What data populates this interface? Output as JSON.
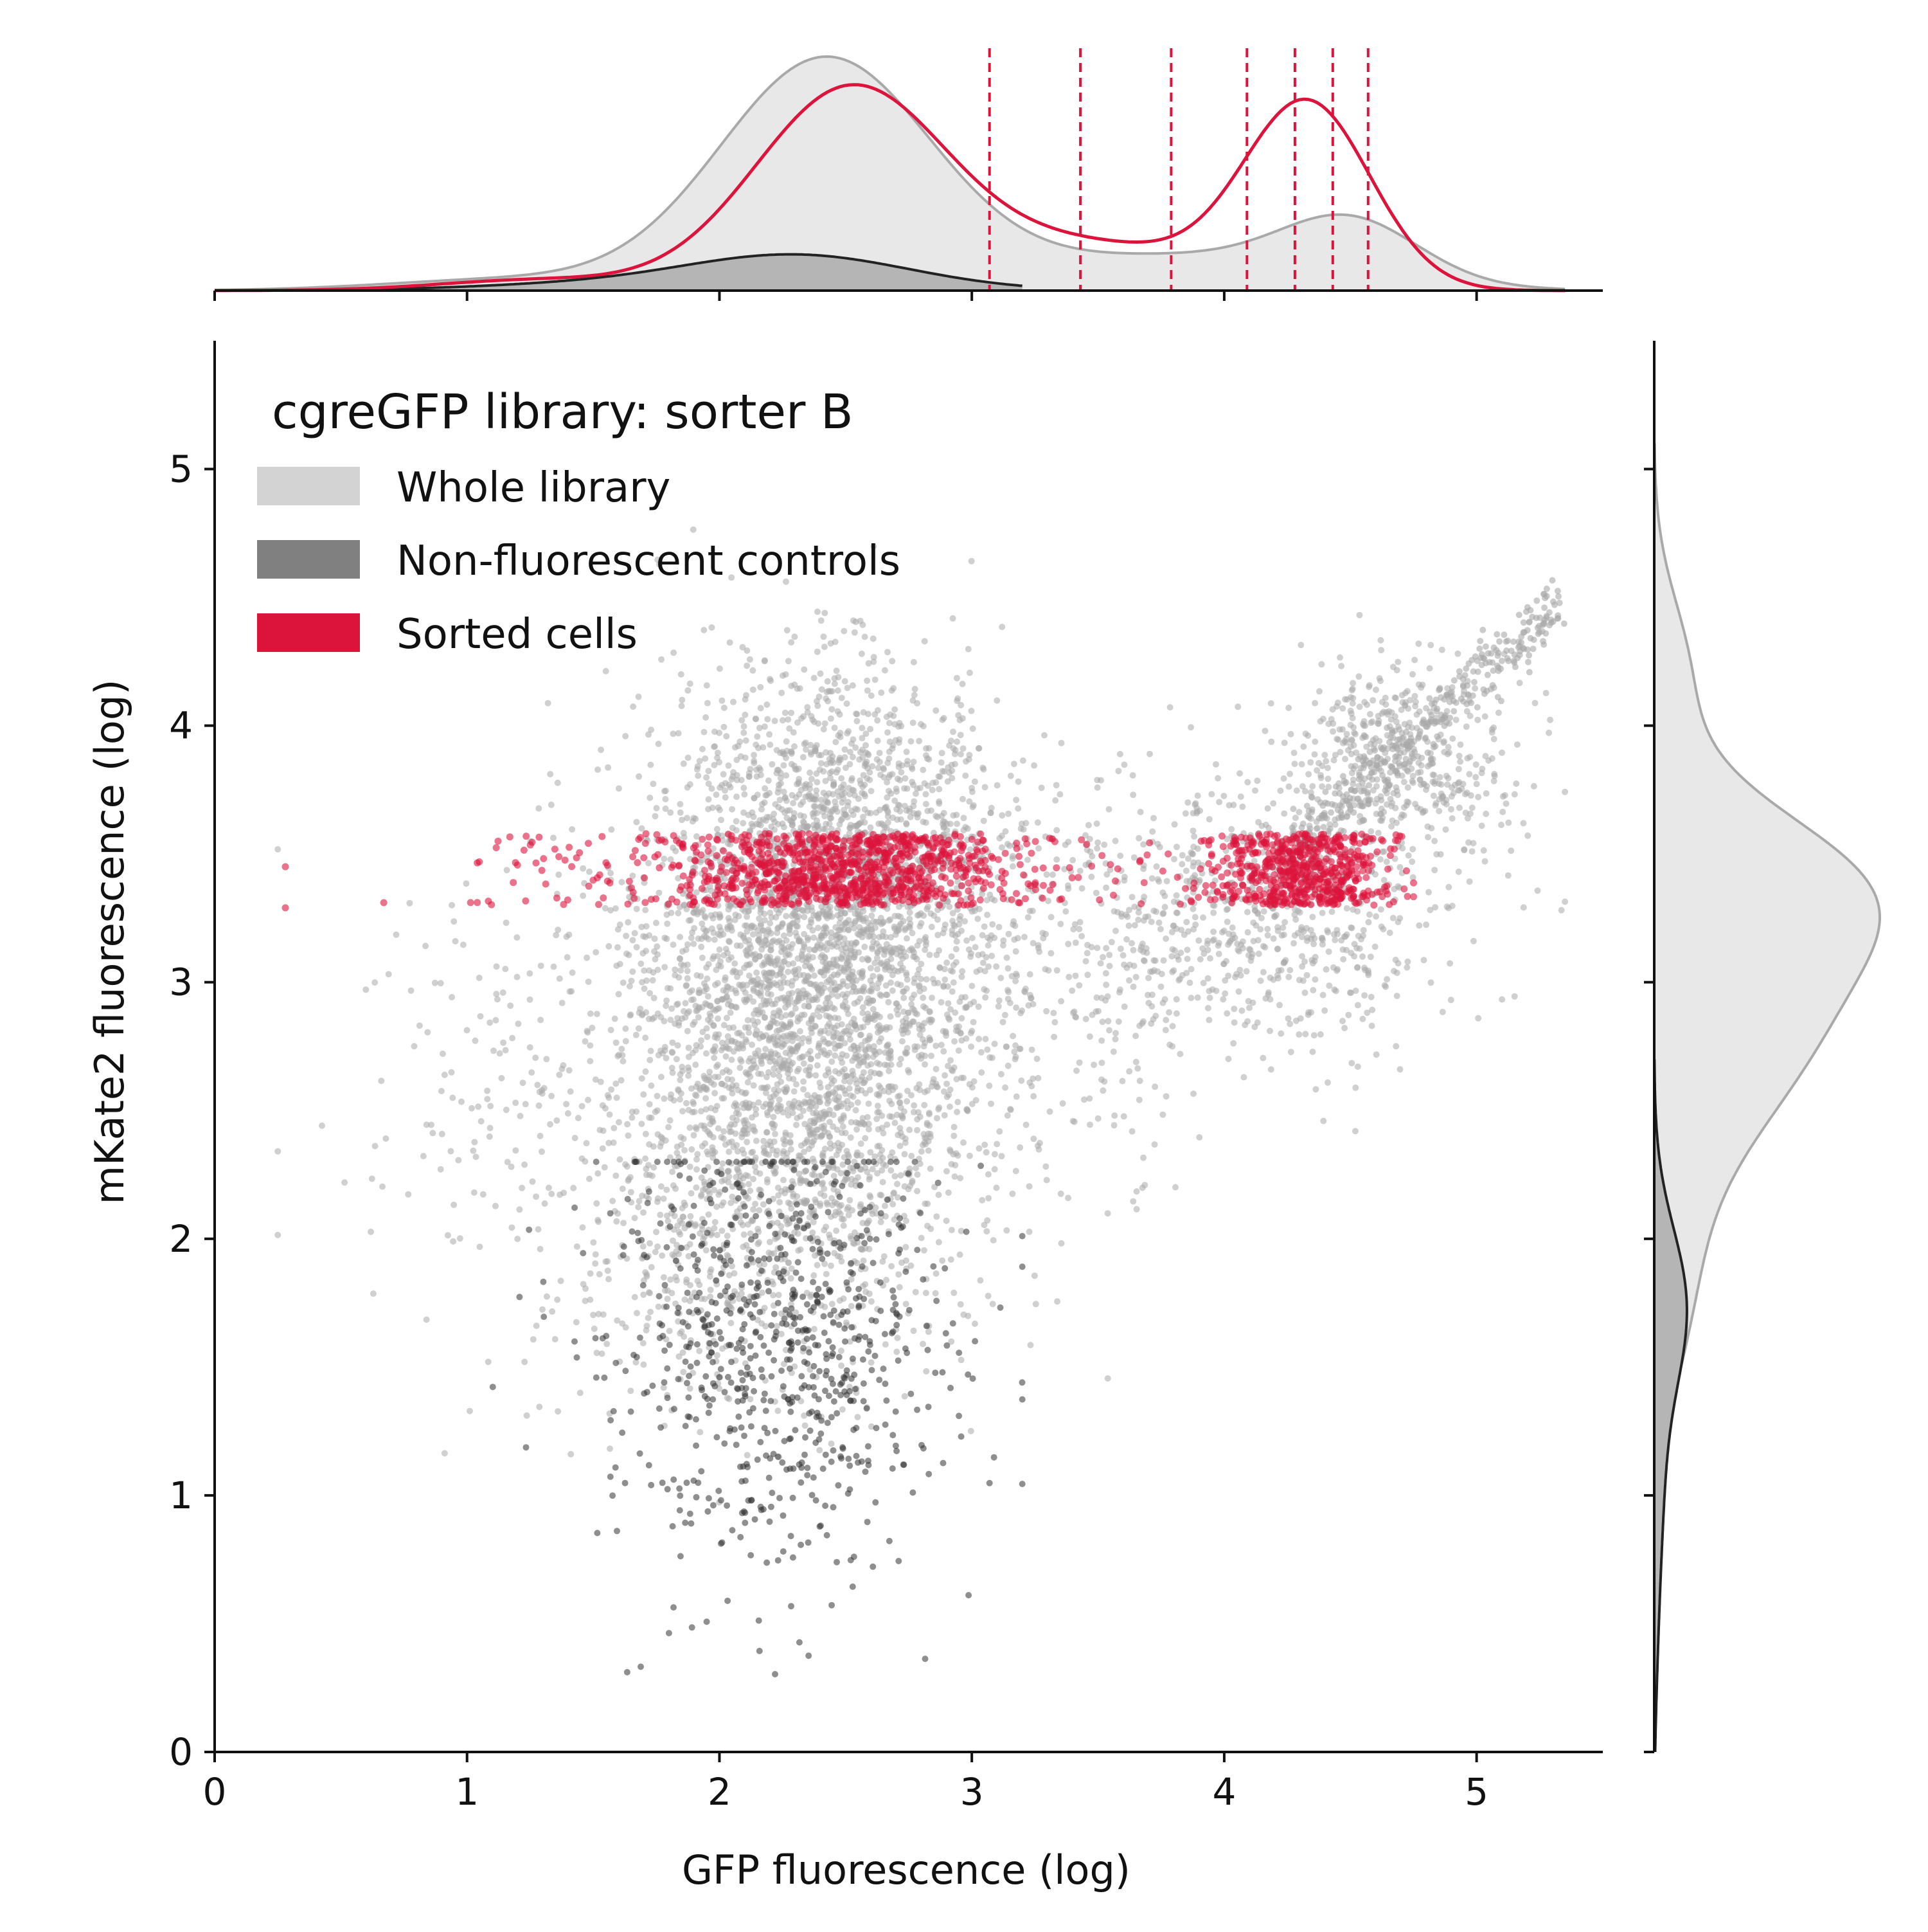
{
  "chart_data": {
    "type": "scatter",
    "subtype": "joint plot with marginal density curves",
    "xlabel": "GFP fluorescence (log)",
    "ylabel": "mKate2 fluorescence (log)",
    "xlim": [
      0,
      5.5
    ],
    "ylim": [
      0,
      5.5
    ],
    "x_ticks": [
      0,
      1,
      2,
      3,
      4,
      5
    ],
    "y_ticks": [
      0,
      1,
      2,
      3,
      4,
      5
    ],
    "x_tick_labels": [
      "0",
      "1",
      "2",
      "3",
      "4",
      "5"
    ],
    "y_tick_labels": [
      "0",
      "1",
      "2",
      "3",
      "4",
      "5"
    ],
    "grid": false,
    "legend": {
      "title": "cgreGFP library: sorter B",
      "placement": "top-left",
      "entries": [
        {
          "label": "Whole library",
          "color": "#d3d3d3"
        },
        {
          "label": "Non-fluorescent controls",
          "color": "#808080"
        },
        {
          "label": "Sorted cells",
          "color": "#dc143c"
        }
      ]
    },
    "colors": {
      "library_points": "#a9a9a9",
      "control_points": "#333333",
      "sorted_points": "#dc143c",
      "library_density_fill": "#e8e8e8",
      "library_density_line": "#a9a9a9",
      "control_density_fill": "#b5b5b5",
      "control_density_line": "#222222",
      "sorted_density_line": "#dc143c",
      "gate_line": "#dc143c"
    },
    "gate_boundaries_x": [
      3.07,
      3.43,
      3.79,
      4.09,
      4.28,
      4.43,
      4.57
    ],
    "sorted_mkate2_range": [
      3.3,
      3.58
    ],
    "series": [
      {
        "name": "Whole library",
        "kind": "scatter",
        "clusters": [
          {
            "center": [
              2.35,
              2.85
            ],
            "spread": [
              0.38,
              0.55
            ],
            "count": 3000
          },
          {
            "center": [
              2.5,
              3.55
            ],
            "spread": [
              0.3,
              0.35
            ],
            "count": 1000
          },
          {
            "center": [
              2.0,
              2.0
            ],
            "spread": [
              0.35,
              0.35
            ],
            "count": 420
          },
          {
            "center": [
              4.15,
              3.25
            ],
            "spread": [
              0.35,
              0.25
            ],
            "count": 650
          },
          {
            "center": [
              4.7,
              3.85
            ],
            "spread": [
              0.22,
              0.2
            ],
            "count": 500
          },
          {
            "center": [
              3.3,
              3.1
            ],
            "spread": [
              0.45,
              0.45
            ],
            "count": 350
          },
          {
            "center": [
              1.2,
              2.6
            ],
            "spread": [
              0.35,
              0.5
            ],
            "count": 170
          }
        ],
        "diagonal_band": {
          "x_range": [
            4.2,
            5.35
          ],
          "y_start": 3.45,
          "y_end": 4.5,
          "count": 350
        }
      },
      {
        "name": "Non-fluorescent controls",
        "kind": "scatter",
        "clusters": [
          {
            "center": [
              2.25,
              1.6
            ],
            "spread": [
              0.35,
              0.45
            ],
            "count": 750
          }
        ]
      },
      {
        "name": "Sorted cells",
        "kind": "scatter",
        "bands": [
          {
            "x_center": 2.5,
            "x_spread": 0.33,
            "count": 850
          },
          {
            "x_center": 4.3,
            "x_spread": 0.17,
            "count": 550
          },
          {
            "x_range": [
              1.0,
              4.7
            ],
            "count": 260
          }
        ],
        "y_range": [
          3.3,
          3.58
        ]
      }
    ],
    "marginal_x_density": [
      {
        "name": "Whole library",
        "peak_height": 1.0,
        "components": [
          {
            "mean": 2.42,
            "sd": 0.42,
            "weight": 0.8
          },
          {
            "mean": 4.5,
            "sd": 0.27,
            "weight": 0.2
          },
          {
            "mean": 3.8,
            "sd": 0.6,
            "weight": 0.12
          },
          {
            "mean": 1.2,
            "sd": 0.5,
            "weight": 0.04
          }
        ]
      },
      {
        "name": "Non-fluorescent controls",
        "peak_height": 0.155,
        "components": [
          {
            "mean": 2.3,
            "sd": 0.45,
            "weight": 1.0
          },
          {
            "mean": 1.4,
            "sd": 0.45,
            "weight": 0.15
          }
        ]
      },
      {
        "name": "Sorted cells",
        "peak_height": 0.88,
        "components": [
          {
            "mean": 2.52,
            "sd": 0.38,
            "weight": 0.55
          },
          {
            "mean": 4.33,
            "sd": 0.25,
            "weight": 0.5
          },
          {
            "mean": 3.5,
            "sd": 0.45,
            "weight": 0.12
          },
          {
            "mean": 1.3,
            "sd": 0.4,
            "weight": 0.03
          }
        ]
      }
    ],
    "marginal_y_density": [
      {
        "name": "Whole library",
        "peak_height": 1.0,
        "components": [
          {
            "mean": 3.4,
            "sd": 0.3,
            "weight": 0.5
          },
          {
            "mean": 2.85,
            "sd": 0.45,
            "weight": 0.55
          },
          {
            "mean": 4.2,
            "sd": 0.3,
            "weight": 0.12
          },
          {
            "mean": 1.8,
            "sd": 0.4,
            "weight": 0.12
          }
        ]
      },
      {
        "name": "Non-fluorescent controls",
        "peak_height": 0.145,
        "components": [
          {
            "mean": 1.75,
            "sd": 0.3,
            "weight": 1.0
          },
          {
            "mean": 1.1,
            "sd": 0.4,
            "weight": 0.3
          },
          {
            "mean": 0.4,
            "sd": 0.3,
            "weight": 0.06
          }
        ]
      }
    ]
  }
}
